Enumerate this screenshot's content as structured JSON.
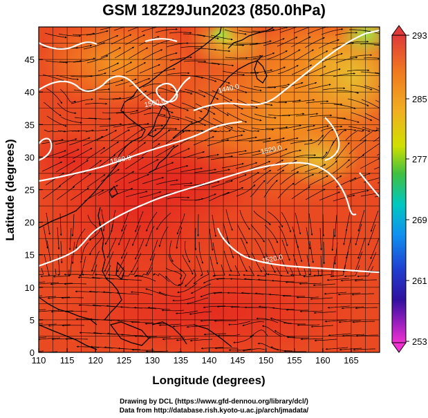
{
  "title": "GSM 18Z29Jun2023 (850.0hPa)",
  "map": {
    "xlabel": "Longitude (degrees)",
    "ylabel": "Latitude  (degrees)",
    "lon_range": [
      110,
      170
    ],
    "lat_range": [
      0,
      50
    ],
    "x_ticks": [
      110,
      115,
      120,
      125,
      130,
      135,
      140,
      145,
      150,
      155,
      160,
      165
    ],
    "y_ticks": [
      0,
      5,
      10,
      15,
      20,
      25,
      30,
      35,
      40,
      45
    ],
    "x_tick_labels": [
      "110",
      "115",
      "120",
      "125",
      "130",
      "135",
      "140",
      "145",
      "150",
      "155",
      "160",
      "165"
    ],
    "y_tick_labels": [
      "0",
      "5",
      "10",
      "15",
      "20",
      "25",
      "30",
      "35",
      "40",
      "45"
    ],
    "contour_labels": [
      {
        "text": "1440.0",
        "lon": 143.5,
        "lat": 40.2
      },
      {
        "text": "1500.0",
        "lon": 130.5,
        "lat": 38.0
      },
      {
        "text": "1560.0",
        "lon": 124.5,
        "lat": 29.3
      },
      {
        "text": "1520.0",
        "lon": 151.0,
        "lat": 30.8
      },
      {
        "text": "1520.0",
        "lon": 151.2,
        "lat": 14.0
      }
    ]
  },
  "colorbar": {
    "ticks": [
      "293",
      "285",
      "277",
      "269",
      "261",
      "253"
    ],
    "colors": [
      "#e0303a",
      "#f07020",
      "#f0a020",
      "#f0d000",
      "#a0e000",
      "#30c030",
      "#00c0a0",
      "#00a0f0",
      "#2060f0",
      "#2020c0",
      "#8020c0",
      "#e020d0"
    ]
  },
  "colors": {
    "field_red": "#e83a2a",
    "field_orange": "#f08a20",
    "field_yellow": "#e8c030",
    "field_green": "#a0e040"
  },
  "credits": {
    "line1": "Drawing by DCL (https://www.gfd-dennou.org/library/dcl/)",
    "line2": "Data from http://database.rish.kyoto-u.ac.jp/arch/jmadata/"
  }
}
